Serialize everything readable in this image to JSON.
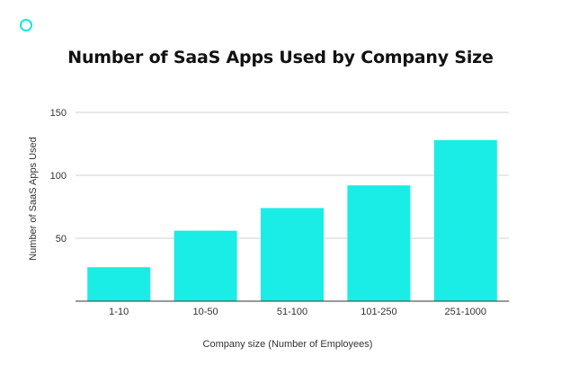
{
  "chart_data": {
    "type": "bar",
    "title": "Number of SaaS Apps Used by Company Size",
    "xlabel": "Company size (Number of Employees)",
    "ylabel": "Number of SaaS Apps Used",
    "categories": [
      "1-10",
      "10-50",
      "51-100",
      "101-250",
      "251-1000"
    ],
    "values": [
      27,
      56,
      74,
      92,
      128
    ],
    "yticks": [
      50,
      100,
      150
    ],
    "ylim": [
      0,
      150
    ],
    "grid": true,
    "color": "#19ede5"
  }
}
